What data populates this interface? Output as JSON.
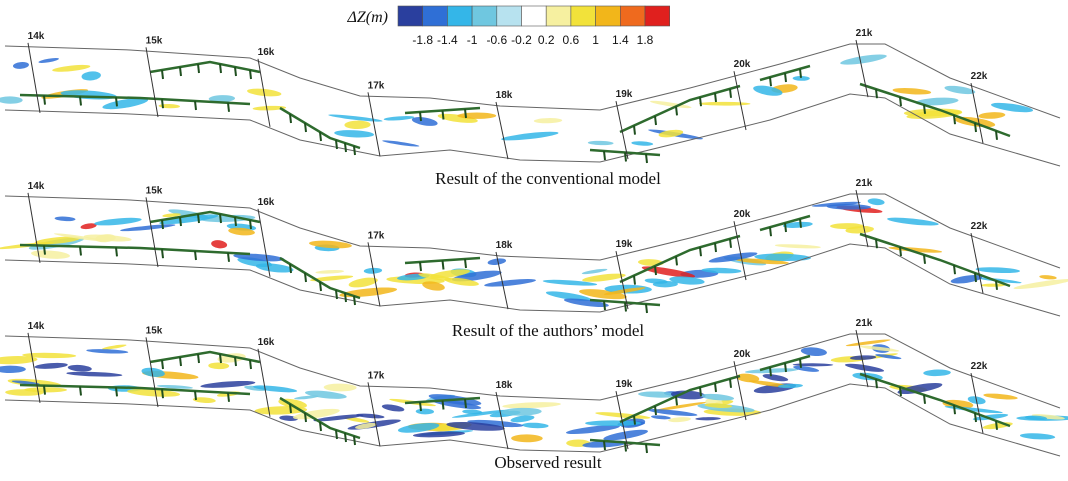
{
  "colorbar": {
    "title": "ΔZ(m)",
    "ticks": [
      -1.8,
      -1.4,
      -1,
      -0.6,
      -0.2,
      0.2,
      0.6,
      1,
      1.4,
      1.8
    ],
    "colors": [
      "#2a3f9e",
      "#2f6fd6",
      "#34b6e8",
      "#6fc7e0",
      "#b7e2ef",
      "#ffffff",
      "#f6f0a0",
      "#f2e23a",
      "#f2b61a",
      "#ef6a1e",
      "#e0201e"
    ]
  },
  "panels": [
    {
      "caption": "Result of the conventional model",
      "stations": [
        "14k",
        "15k",
        "16k",
        "17k",
        "18k",
        "19k",
        "20k",
        "21k",
        "22k"
      ]
    },
    {
      "caption": "Result of the authors’ model",
      "stations": [
        "14k",
        "15k",
        "16k",
        "17k",
        "18k",
        "19k",
        "20k",
        "21k",
        "22k"
      ]
    },
    {
      "caption": "Observed result",
      "stations": [
        "14k",
        "15k",
        "16k",
        "17k",
        "18k",
        "19k",
        "20k",
        "21k",
        "22k"
      ]
    }
  ]
}
